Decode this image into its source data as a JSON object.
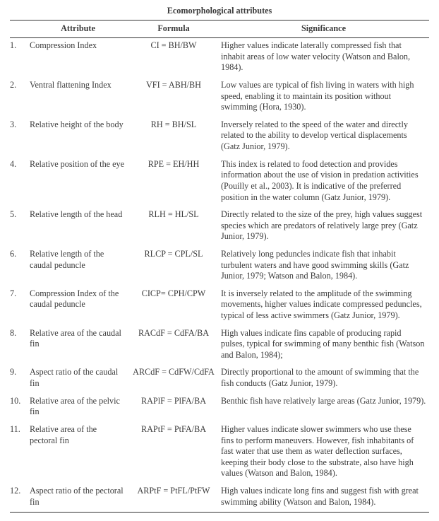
{
  "title": "Ecomorphological attributes",
  "headers": {
    "attribute": "Attribute",
    "formula": "Formula",
    "significance": "Significance"
  },
  "rows": [
    {
      "n": "1.",
      "attr": "Compression Index",
      "formula": "CI = BH/BW",
      "sig": "Higher values indicate laterally compressed fish that inhabit areas of low water velocity (Watson and Balon, 1984)."
    },
    {
      "n": "2.",
      "attr": "Ventral flattening Index",
      "formula": "VFI = ABH/BH",
      "sig": "Low values are typical of fish living in waters with high speed, enabling it to maintain its position without swimming (Hora, 1930)."
    },
    {
      "n": "3.",
      "attr": "Relative height of the body",
      "formula": "RH = BH/SL",
      "sig": "Inversely related to the speed of the water and directly related to the ability to develop vertical displacements (Gatz Junior, 1979)."
    },
    {
      "n": "4.",
      "attr": "Relative position of the eye",
      "formula": "RPE = EH/HH",
      "sig": "This index is related to food detection and provides information about the use of vision in predation activities (Pouilly et al., 2003). It is indicative of the preferred position in the water column (Gatz Junior, 1979)."
    },
    {
      "n": "5.",
      "attr": "Relative length of the head",
      "formula": "RLH = HL/SL",
      "sig": "Directly related to the size of the prey, high values suggest species which are predators of relatively large prey (Gatz Junior, 1979)."
    },
    {
      "n": "6.",
      "attr": "Relative length of the caudal peduncle",
      "formula": "RLCP = CPL/SL",
      "sig": "Relatively long peduncles indicate fish that inhabit turbulent waters and have good swimming skills (Gatz Junior, 1979; Watson and Balon, 1984)."
    },
    {
      "n": "7.",
      "attr": "Compression Index of the caudal peduncle",
      "formula": "CICP= CPH/CPW",
      "sig": "It is inversely related to the amplitude of the swimming movements, higher values indicate compressed peduncles, typical of less active swimmers (Gatz Junior, 1979)."
    },
    {
      "n": "8.",
      "attr": "Relative area of the caudal fin",
      "formula": "RACdF = CdFA/BA",
      "sig": "High values indicate fins capable of producing rapid pulses, typical for swimming of many benthic fish (Watson and Balon, 1984);"
    },
    {
      "n": "9.",
      "attr": "Aspect ratio of the caudal fin",
      "formula": "ARCdF = CdFW/CdFA",
      "sig": "Directly proportional to the amount of swimming that the fish conducts (Gatz Junior, 1979)."
    },
    {
      "n": "10.",
      "attr": "Relative area of the pelvic fin",
      "formula": "RAPlF = PlFA/BA",
      "sig": "Benthic fish have relatively large areas (Gatz Junior, 1979)."
    },
    {
      "n": "11.",
      "attr": "Relative area of the pectoral fin",
      "formula": "RAPtF = PtFA/BA",
      "sig": "Higher values indicate slower swimmers who use these fins to perform maneuvers. However, fish inhabitants of fast water that use them as water deflection surfaces, keeping their body close to the substrate, also have high values (Watson and Balon, 1984)."
    },
    {
      "n": "12.",
      "attr": "Aspect ratio of the pectoral fin",
      "formula": "ARPtF = PtFL/PtFW",
      "sig": "High values indicate long fins and suggest fish with great swimming ability (Watson and Balon, 1984)."
    }
  ]
}
